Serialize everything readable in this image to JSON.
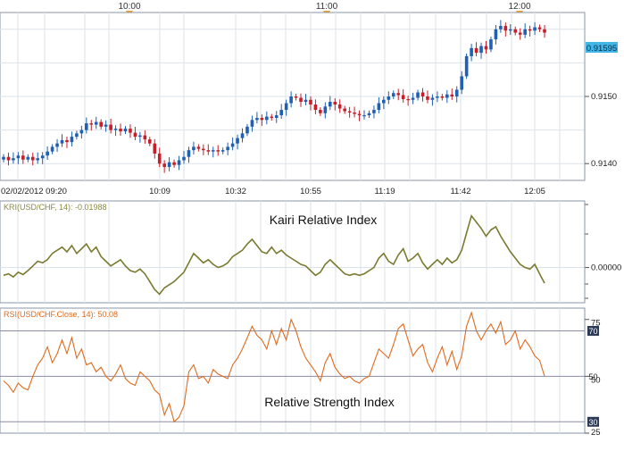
{
  "time_markers": [
    "10:00",
    "11:00",
    "12:00"
  ],
  "time_axis": {
    "labels": [
      "02/02/2012 09:20",
      "10:09",
      "10:32",
      "10:55",
      "11:19",
      "11:42",
      "12:05"
    ]
  },
  "colors": {
    "up": "#1f5fb4",
    "down": "#c81e28",
    "kri_line": "#7a7a30",
    "rsi_line": "#e06a1c",
    "grid": "#dde3ea",
    "frame": "#8a96a6",
    "price_badge": "#40b6e6",
    "level_line": "#8c8ca6",
    "marker": "#f0a030"
  },
  "chart_data": [
    {
      "type": "candlestick",
      "y_ticks": [
        "0.9140",
        "0.9150"
      ],
      "ylim": [
        0.91375,
        0.91625
      ],
      "last_price_label": "0.91595",
      "last_price": 0.91595,
      "series": [
        {
          "values": [
            0.9141,
            0.91405,
            0.91408,
            0.91412,
            0.91406,
            0.9141,
            0.91405,
            0.91408,
            0.91412,
            0.91418,
            0.91425,
            0.9143,
            0.91435,
            0.91432,
            0.9144,
            0.91445,
            0.9145,
            0.9146,
            0.91458,
            0.91462,
            0.91455,
            0.91458,
            0.9145,
            0.91452,
            0.91448,
            0.91452,
            0.91446,
            0.9144,
            0.91442,
            0.91436,
            0.9143,
            0.91415,
            0.914,
            0.91395,
            0.91402,
            0.91398,
            0.91405,
            0.9141,
            0.9142,
            0.91425,
            0.91422,
            0.9142,
            0.91418,
            0.9142,
            0.91418,
            0.9142,
            0.91425,
            0.9143,
            0.91438,
            0.91445,
            0.91455,
            0.91465,
            0.91468,
            0.91465,
            0.9147,
            0.91468,
            0.91472,
            0.9148,
            0.9149,
            0.915,
            0.91498,
            0.91492,
            0.91495,
            0.91488,
            0.9148,
            0.91475,
            0.91485,
            0.91492,
            0.91488,
            0.91482,
            0.91478,
            0.91476,
            0.91474,
            0.91472,
            0.91472,
            0.91475,
            0.9148,
            0.9149,
            0.91495,
            0.915,
            0.91505,
            0.91502,
            0.91496,
            0.91495,
            0.91498,
            0.91506,
            0.915,
            0.91495,
            0.91498,
            0.915,
            0.91498,
            0.91503,
            0.915,
            0.9151,
            0.9153,
            0.9156,
            0.91572,
            0.91565,
            0.91575,
            0.9157,
            0.91585,
            0.916,
            0.91605,
            0.91598,
            0.916,
            0.91595,
            0.91592,
            0.916,
            0.91598,
            0.91603,
            0.916,
            0.91595
          ]
        }
      ]
    },
    {
      "type": "line",
      "title": "Kairi Relative Index",
      "legend_label": "KRI(USD/CHF, 14): -0.01988",
      "y_ticks": [
        "0.00000"
      ],
      "ylim": [
        -0.045,
        0.085
      ],
      "series": [
        {
          "name": "KRI(USD/CHF, 14)",
          "values": [
            -0.01,
            -0.008,
            -0.012,
            -0.006,
            -0.009,
            -0.004,
            0.002,
            0.008,
            0.006,
            0.01,
            0.018,
            0.022,
            0.026,
            0.02,
            0.028,
            0.018,
            0.024,
            0.03,
            0.02,
            0.026,
            0.014,
            0.008,
            0.002,
            0.006,
            0.01,
            0.002,
            -0.004,
            -0.006,
            -0.002,
            -0.008,
            -0.018,
            -0.028,
            -0.034,
            -0.026,
            -0.022,
            -0.018,
            -0.012,
            -0.006,
            0.006,
            0.018,
            0.012,
            0.006,
            0.01,
            0.004,
            0.0,
            0.002,
            0.006,
            0.014,
            0.018,
            0.022,
            0.03,
            0.036,
            0.028,
            0.02,
            0.018,
            0.026,
            0.018,
            0.022,
            0.016,
            0.012,
            0.008,
            0.004,
            0.002,
            -0.004,
            -0.01,
            -0.006,
            0.004,
            0.01,
            0.004,
            -0.002,
            -0.008,
            -0.01,
            -0.008,
            -0.01,
            -0.008,
            -0.004,
            0.0,
            0.012,
            0.018,
            0.008,
            0.004,
            0.016,
            0.024,
            0.008,
            0.012,
            0.018,
            0.006,
            -0.002,
            0.004,
            0.01,
            0.004,
            0.012,
            0.006,
            0.01,
            0.022,
            0.044,
            0.066,
            0.058,
            0.05,
            0.04,
            0.048,
            0.052,
            0.04,
            0.03,
            0.02,
            0.012,
            0.004,
            0.0,
            -0.002,
            0.004,
            -0.008,
            -0.02
          ]
        }
      ]
    },
    {
      "type": "line",
      "title": "Relative Strength Index",
      "legend_label": "RSI(USD/CHF.Close, 14): 50.08",
      "y_ticks": [
        75,
        50,
        25
      ],
      "level_labels": [
        "70",
        "50",
        "30"
      ],
      "levels": [
        70,
        50,
        30
      ],
      "ylim": [
        25,
        80
      ],
      "series": [
        {
          "name": "RSI(USD/CHF.Close, 14)",
          "values": [
            48,
            46,
            43,
            47,
            45,
            44,
            50,
            55,
            58,
            63,
            56,
            60,
            66,
            60,
            67,
            58,
            62,
            55,
            56,
            52,
            54,
            50,
            48,
            51,
            55,
            49,
            47,
            46,
            52,
            50,
            48,
            44,
            42,
            33,
            38,
            30,
            32,
            37,
            52,
            55,
            49,
            50,
            47,
            53,
            51,
            50,
            49,
            55,
            58,
            62,
            67,
            72,
            68,
            66,
            62,
            70,
            64,
            71,
            66,
            75,
            70,
            63,
            58,
            55,
            52,
            48,
            56,
            60,
            54,
            51,
            49,
            50,
            48,
            47,
            49,
            50,
            56,
            62,
            60,
            58,
            64,
            71,
            73,
            66,
            59,
            62,
            64,
            56,
            52,
            58,
            63,
            55,
            61,
            53,
            59,
            72,
            78,
            70,
            66,
            70,
            73,
            69,
            74,
            64,
            66,
            70,
            62,
            66,
            63,
            59,
            57,
            50
          ]
        }
      ]
    }
  ]
}
